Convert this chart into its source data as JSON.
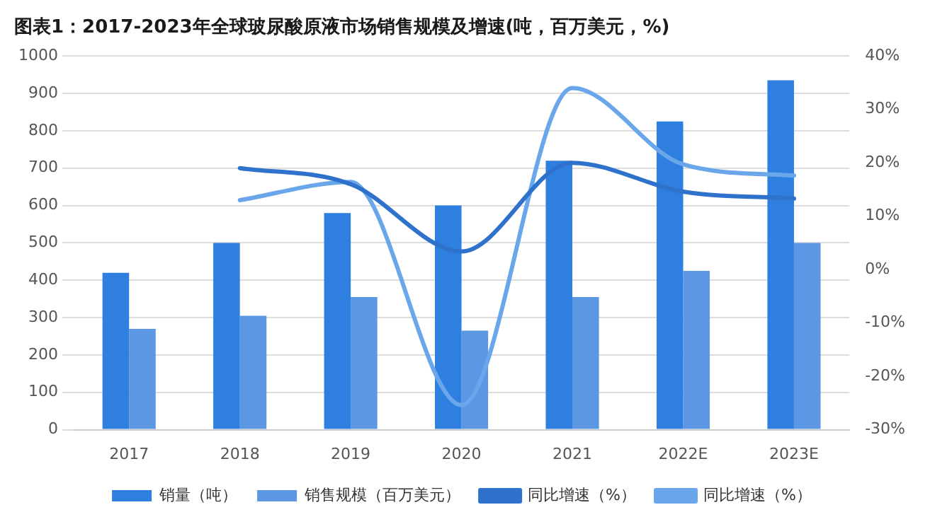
{
  "chart_data": {
    "type": "bar",
    "title": "图表1：2017-2023年全球玻尿酸原液市场销售规模及增速(吨，百万美元，%)",
    "categories": [
      "2017",
      "2018",
      "2019",
      "2020",
      "2021",
      "2022E",
      "2023E"
    ],
    "series": [
      {
        "name": "销量（吨）",
        "color": "#2e7fe0",
        "values": [
          420,
          500,
          580,
          600,
          720,
          825,
          935
        ]
      },
      {
        "name": "销售规模（百万美元）",
        "color": "#5b97e3",
        "values": [
          270,
          305,
          355,
          265,
          355,
          425,
          500
        ]
      },
      {
        "name": "同比增速（%）",
        "type": "line",
        "axis": "y2",
        "color": "#2f72cc",
        "values": [
          null,
          19,
          16,
          3.4,
          20,
          14.6,
          13.3
        ]
      },
      {
        "name": "同比增速（%）",
        "type": "line",
        "axis": "y2",
        "color": "#6aa6ea",
        "values": [
          null,
          13,
          16.4,
          -25.4,
          34,
          19.7,
          17.6
        ]
      }
    ],
    "ylim": [
      0,
      1000
    ],
    "yticks": [
      0,
      100,
      200,
      300,
      400,
      500,
      600,
      700,
      800,
      900,
      1000
    ],
    "y2lim": [
      -30,
      40
    ],
    "y2ticks": [
      {
        "value": -30,
        "label": "-30%"
      },
      {
        "value": -20,
        "label": "-20%"
      },
      {
        "value": -10,
        "label": "-10%"
      },
      {
        "value": 0,
        "label": "0%"
      },
      {
        "value": 10,
        "label": "10%"
      },
      {
        "value": 20,
        "label": "20%"
      },
      {
        "value": 30,
        "label": "30%"
      },
      {
        "value": 40,
        "label": "40%"
      }
    ],
    "grid": "y",
    "legend": "bottom",
    "marker": "none"
  }
}
